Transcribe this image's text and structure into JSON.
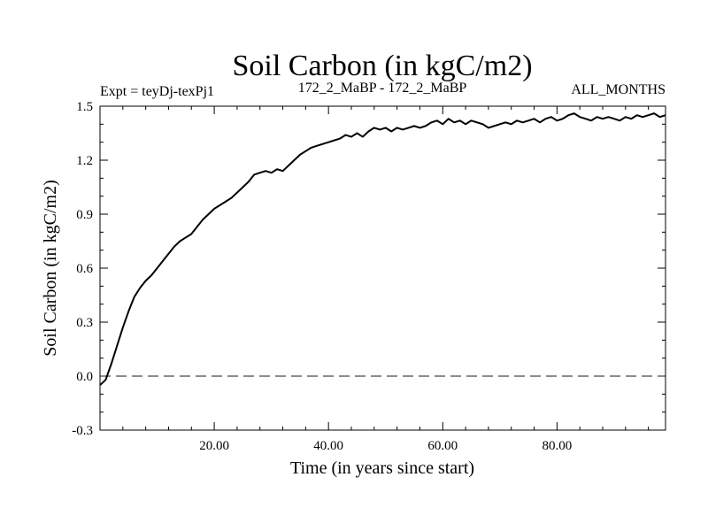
{
  "chart_data": {
    "type": "line",
    "title": "Soil Carbon (in kgC/m2)",
    "subtitle_left": "Expt = teyDj-texPj1",
    "subtitle_center": "172_2_MaBP - 172_2_MaBP",
    "subtitle_right": "ALL_MONTHS",
    "xlabel": "Time (in years since start)",
    "ylabel": "Soil Carbon (in kgC/m2)",
    "xlim": [
      0,
      99
    ],
    "ylim": [
      -0.3,
      1.5
    ],
    "x_ticks": [
      20,
      40,
      60,
      80
    ],
    "x_tick_labels": [
      "20.00",
      "40.00",
      "60.00",
      "80.00"
    ],
    "y_ticks": [
      -0.3,
      0.0,
      0.3,
      0.6,
      0.9,
      1.2,
      1.5
    ],
    "y_tick_labels": [
      "-0.3",
      "0.0",
      "0.3",
      "0.6",
      "0.9",
      "1.2",
      "1.5"
    ],
    "reference_line": {
      "y": 0.0,
      "style": "dashed"
    },
    "series": [
      {
        "name": "Soil Carbon",
        "x": [
          0,
          1,
          2,
          3,
          4,
          5,
          6,
          7,
          8,
          9,
          10,
          11,
          12,
          13,
          14,
          15,
          16,
          17,
          18,
          19,
          20,
          21,
          22,
          23,
          24,
          25,
          26,
          27,
          28,
          29,
          30,
          31,
          32,
          33,
          34,
          35,
          36,
          37,
          38,
          39,
          40,
          41,
          42,
          43,
          44,
          45,
          46,
          47,
          48,
          49,
          50,
          51,
          52,
          53,
          54,
          55,
          56,
          57,
          58,
          59,
          60,
          61,
          62,
          63,
          64,
          65,
          66,
          67,
          68,
          69,
          70,
          71,
          72,
          73,
          74,
          75,
          76,
          77,
          78,
          79,
          80,
          81,
          82,
          83,
          84,
          85,
          86,
          87,
          88,
          89,
          90,
          91,
          92,
          93,
          94,
          95,
          96,
          97,
          98,
          99
        ],
        "values": [
          -0.05,
          -0.02,
          0.07,
          0.17,
          0.27,
          0.36,
          0.44,
          0.49,
          0.53,
          0.56,
          0.6,
          0.64,
          0.68,
          0.72,
          0.75,
          0.77,
          0.79,
          0.83,
          0.87,
          0.9,
          0.93,
          0.95,
          0.97,
          0.99,
          1.02,
          1.05,
          1.08,
          1.12,
          1.13,
          1.14,
          1.13,
          1.15,
          1.14,
          1.17,
          1.2,
          1.23,
          1.25,
          1.27,
          1.28,
          1.29,
          1.3,
          1.31,
          1.32,
          1.34,
          1.33,
          1.35,
          1.33,
          1.36,
          1.38,
          1.37,
          1.38,
          1.36,
          1.38,
          1.37,
          1.38,
          1.39,
          1.38,
          1.39,
          1.41,
          1.42,
          1.4,
          1.43,
          1.41,
          1.42,
          1.4,
          1.42,
          1.41,
          1.4,
          1.38,
          1.39,
          1.4,
          1.41,
          1.4,
          1.42,
          1.41,
          1.42,
          1.43,
          1.41,
          1.43,
          1.44,
          1.42,
          1.43,
          1.45,
          1.46,
          1.44,
          1.43,
          1.42,
          1.44,
          1.43,
          1.44,
          1.43,
          1.42,
          1.44,
          1.43,
          1.45,
          1.44,
          1.45,
          1.46,
          1.44,
          1.45
        ]
      }
    ]
  },
  "colors": {
    "line": "#000000",
    "reference_line": "#666666",
    "axis": "#000000",
    "background": "#ffffff"
  }
}
